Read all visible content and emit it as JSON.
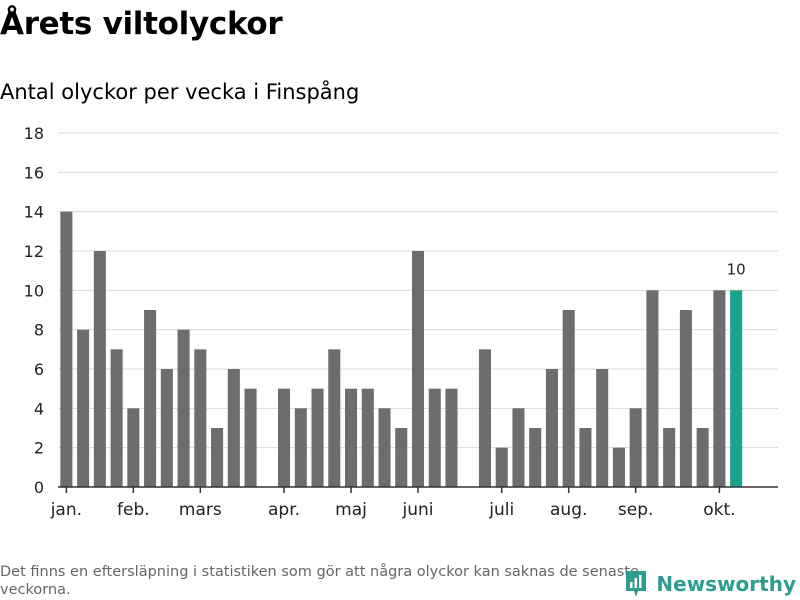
{
  "header": {
    "title": "Årets viltolyckor",
    "subtitle": "Antal olyckor per vecka i Finspång"
  },
  "footer": {
    "note": "Det finns en eftersläpning i statistiken som gör att några olyckor kan saknas de senaste veckorna.",
    "brand": "Newsworthy",
    "brand_icon": "newsworthy-logo-icon"
  },
  "colors": {
    "bar": "#6d6d70",
    "highlight": "#1aa38e",
    "grid": "#d9d9d9",
    "axis": "#333333",
    "brand": "#2d9d8f"
  },
  "chart_data": {
    "type": "bar",
    "title": "Antal olyckor per vecka i Finspång",
    "xlabel": "",
    "ylabel": "",
    "ylim": [
      0,
      18
    ],
    "yticks": [
      0,
      2,
      4,
      6,
      8,
      10,
      12,
      14,
      16,
      18
    ],
    "grid": true,
    "week_slots": 43,
    "weeks": [
      1,
      2,
      3,
      4,
      5,
      6,
      7,
      8,
      9,
      10,
      11,
      12,
      14,
      15,
      16,
      17,
      18,
      19,
      20,
      21,
      22,
      23,
      24,
      26,
      27,
      28,
      29,
      30,
      31,
      32,
      33,
      34,
      35,
      36,
      37,
      38,
      39,
      40,
      41
    ],
    "values": [
      14,
      8,
      12,
      7,
      4,
      9,
      6,
      8,
      7,
      3,
      6,
      5,
      5,
      4,
      5,
      7,
      5,
      5,
      4,
      3,
      12,
      5,
      5,
      7,
      2,
      4,
      3,
      6,
      9,
      3,
      6,
      2,
      4,
      10,
      3,
      9,
      3,
      10,
      10
    ],
    "highlight_index": 38,
    "highlight_label": "10",
    "month_labels": [
      {
        "label": "jan.",
        "week": 1
      },
      {
        "label": "feb.",
        "week": 5
      },
      {
        "label": "mars",
        "week": 9
      },
      {
        "label": "apr.",
        "week": 14
      },
      {
        "label": "maj",
        "week": 18
      },
      {
        "label": "juni",
        "week": 22
      },
      {
        "label": "juli",
        "week": 27
      },
      {
        "label": "aug.",
        "week": 31
      },
      {
        "label": "sep.",
        "week": 35
      },
      {
        "label": "okt.",
        "week": 40
      }
    ]
  }
}
